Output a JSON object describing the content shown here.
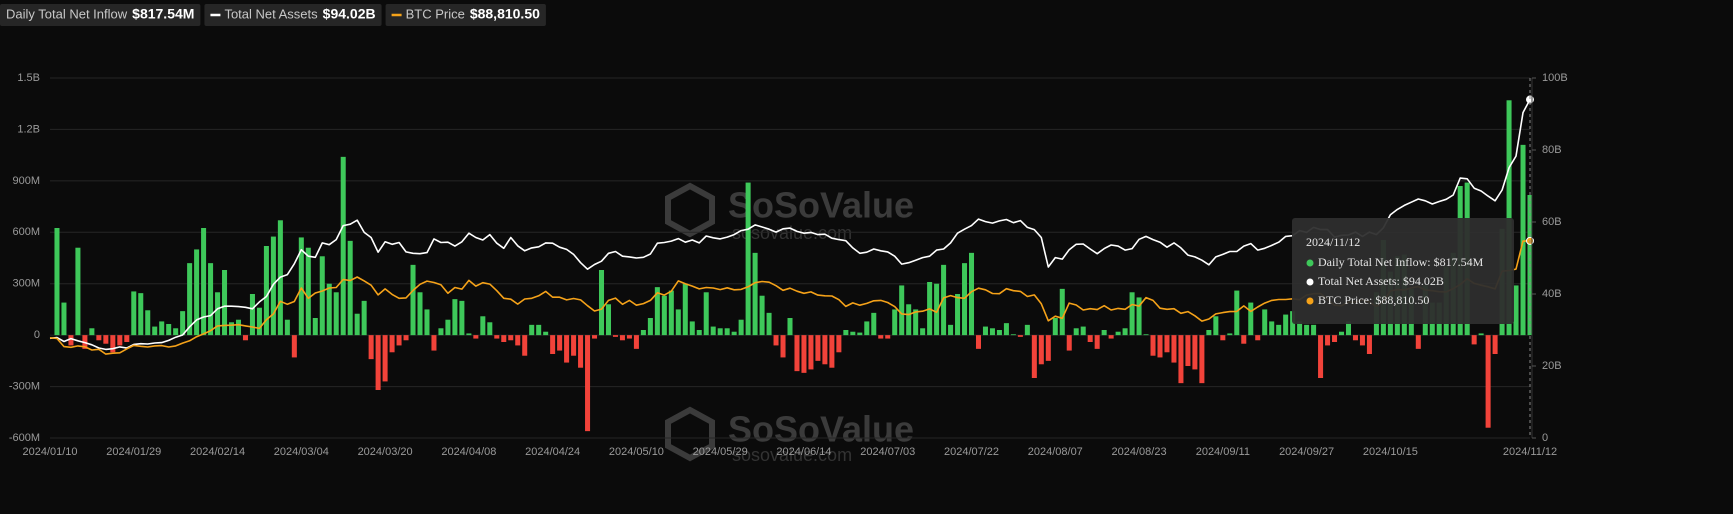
{
  "chart_data": {
    "type": "bar",
    "categories": [
      "2024/01/10",
      null,
      null,
      null,
      null,
      null,
      null,
      null,
      null,
      null,
      null,
      null,
      "2024/01/29",
      null,
      null,
      null,
      null,
      null,
      null,
      null,
      null,
      null,
      null,
      null,
      "2024/02/14",
      null,
      null,
      null,
      null,
      null,
      null,
      null,
      null,
      null,
      null,
      null,
      "2024/03/04",
      null,
      null,
      null,
      null,
      null,
      null,
      null,
      null,
      null,
      null,
      null,
      "2024/03/20",
      null,
      null,
      null,
      null,
      null,
      null,
      null,
      null,
      null,
      null,
      null,
      "2024/04/08",
      null,
      null,
      null,
      null,
      null,
      null,
      null,
      null,
      null,
      null,
      null,
      "2024/04/24",
      null,
      null,
      null,
      null,
      null,
      null,
      null,
      null,
      null,
      null,
      null,
      "2024/05/10",
      null,
      null,
      null,
      null,
      null,
      null,
      null,
      null,
      null,
      null,
      null,
      "2024/05/29",
      null,
      null,
      null,
      null,
      null,
      null,
      null,
      null,
      null,
      null,
      null,
      "2024/06/14",
      null,
      null,
      null,
      null,
      null,
      null,
      null,
      null,
      null,
      null,
      null,
      "2024/07/03",
      null,
      null,
      null,
      null,
      null,
      null,
      null,
      null,
      null,
      null,
      null,
      "2024/07/22",
      null,
      null,
      null,
      null,
      null,
      null,
      null,
      null,
      null,
      null,
      null,
      "2024/08/07",
      null,
      null,
      null,
      null,
      null,
      null,
      null,
      null,
      null,
      null,
      null,
      "2024/08/23",
      null,
      null,
      null,
      null,
      null,
      null,
      null,
      null,
      null,
      null,
      null,
      "2024/09/11",
      null,
      null,
      null,
      null,
      null,
      null,
      null,
      null,
      null,
      null,
      null,
      "2024/09/27",
      null,
      null,
      null,
      null,
      null,
      null,
      null,
      null,
      null,
      null,
      null,
      "2024/10/15",
      null,
      null,
      null,
      null,
      null,
      null,
      null,
      null,
      null,
      null,
      null,
      null,
      null,
      null,
      null,
      null,
      null,
      null,
      null,
      "2024/11/12"
    ],
    "series": [
      {
        "name": "Daily Total Net Inflow",
        "type": "bar",
        "color": "#3ec85a",
        "negative_color": "#f2433a",
        "latest_label": "$817.54M",
        "values": [
          null,
          625,
          190,
          -60,
          510,
          -80,
          40,
          -30,
          -50,
          -100,
          -60,
          -40,
          255,
          245,
          145,
          50,
          80,
          65,
          40,
          140,
          420,
          500,
          625,
          420,
          250,
          380,
          75,
          90,
          -30,
          240,
          160,
          520,
          575,
          670,
          90,
          -130,
          570,
          510,
          100,
          460,
          300,
          250,
          1040,
          550,
          125,
          200,
          -140,
          -320,
          -270,
          -100,
          -60,
          -30,
          410,
          250,
          150,
          -90,
          40,
          90,
          210,
          200,
          10,
          -20,
          110,
          75,
          -20,
          -40,
          -30,
          -60,
          -120,
          60,
          60,
          20,
          -110,
          -90,
          -160,
          -120,
          -190,
          -560,
          -20,
          380,
          180,
          -10,
          -30,
          -20,
          -80,
          30,
          100,
          280,
          230,
          260,
          150,
          300,
          80,
          30,
          250,
          50,
          40,
          40,
          20,
          90,
          890,
          480,
          230,
          130,
          -60,
          -130,
          100,
          -210,
          -220,
          -200,
          -150,
          -170,
          -190,
          -100,
          30,
          20,
          15,
          80,
          130,
          -20,
          -20,
          150,
          290,
          180,
          150,
          40,
          310,
          300,
          410,
          60,
          240,
          420,
          480,
          -80,
          50,
          40,
          30,
          70,
          5,
          -10,
          60,
          -250,
          -170,
          -150,
          100,
          270,
          -90,
          40,
          50,
          -40,
          -80,
          30,
          -20,
          20,
          40,
          250,
          220,
          5,
          -120,
          -130,
          -100,
          -160,
          -280,
          -180,
          -200,
          -280,
          30,
          110,
          -30,
          10,
          260,
          -50,
          190,
          -30,
          150,
          80,
          60,
          120,
          140,
          80,
          60,
          60,
          -250,
          -60,
          -40,
          20,
          80,
          -30,
          -60,
          -110,
          250,
          555,
          370,
          460,
          470,
          270,
          -80,
          290,
          190,
          190,
          400,
          480,
          870,
          890,
          -54,
          10,
          -540,
          -110,
          620,
          1370,
          290,
          1110,
          817.54
        ]
      },
      {
        "name": "Total Net Assets",
        "type": "line",
        "axis": "y2",
        "color": "#ffffff",
        "latest_label": "$94.02B",
        "values": [
          27.7,
          27.9,
          26.8,
          27.6,
          27.0,
          26.5,
          25.9,
          25.0,
          24.6,
          24.8,
          25.3,
          25.0,
          26.0,
          26.2,
          26.1,
          26.4,
          26.5,
          27.1,
          28.0,
          28.6,
          30.9,
          32.8,
          33.6,
          34.0,
          35.9,
          36.6,
          36.6,
          36.5,
          36.3,
          35.9,
          37.8,
          39.3,
          42.7,
          44.7,
          45.4,
          48.4,
          52.3,
          50.5,
          50.2,
          54.2,
          53.7,
          55.1,
          59.0,
          59.4,
          60.5,
          57.1,
          55.7,
          51.6,
          54.5,
          53.8,
          54.3,
          51.7,
          51.3,
          51.2,
          51.5,
          55.3,
          54.3,
          54.4,
          53.3,
          54.5,
          56.9,
          55.7,
          55.0,
          56.5,
          54.1,
          52.7,
          55.7,
          53.4,
          52.0,
          52.8,
          53.1,
          54.2,
          54.1,
          53.0,
          52.4,
          51.0,
          48.7,
          46.9,
          48.2,
          49.1,
          51.3,
          51.8,
          50.5,
          50.3,
          50.0,
          50.2,
          51.1,
          54.1,
          54.3,
          54.7,
          55.4,
          54.4,
          55.0,
          54.2,
          56.1,
          55.6,
          55.3,
          55.8,
          56.5,
          57.6,
          58.0,
          59.2,
          58.6,
          58.0,
          57.2,
          58.1,
          58.3,
          57.4,
          56.9,
          57.1,
          56.5,
          56.6,
          55.5,
          55.1,
          54.8,
          52.8,
          51.3,
          51.6,
          52.5,
          52.0,
          51.7,
          50.5,
          48.3,
          48.7,
          49.4,
          50.1,
          50.5,
          52.2,
          52.5,
          54.2,
          56.9,
          58.0,
          59.0,
          60.8,
          60.1,
          59.7,
          60.3,
          60.7,
          59.8,
          60.4,
          58.5,
          57.9,
          55.7,
          47.5,
          50.1,
          49.7,
          52.3,
          53.8,
          53.9,
          52.5,
          51.2,
          52.6,
          53.6,
          53.3,
          52.2,
          52.6,
          55.2,
          56.0,
          55.1,
          54.4,
          53.0,
          54.2,
          52.8,
          50.8,
          50.3,
          49.4,
          48.1,
          50.3,
          51.0,
          51.8,
          51.8,
          53.3,
          54.0,
          52.2,
          52.7,
          53.5,
          54.4,
          56.0,
          56.2,
          57.6,
          57.1,
          58.5,
          57.9,
          57.9,
          55.8,
          56.3,
          56.4,
          57.2,
          56.0,
          57.2,
          56.5,
          58.4,
          62.0,
          63.5,
          64.6,
          65.5,
          66.4,
          65.9,
          65.0,
          65.7,
          66.3,
          67.5,
          72.2,
          72.0,
          69.4,
          68.6,
          67.2,
          65.9,
          68.9,
          75.1,
          78.3,
          90.4,
          94.02
        ]
      },
      {
        "name": "BTC Price",
        "type": "line",
        "axis": "y3",
        "color": "#f5a219",
        "latest_label": "$88,810.50",
        "values": [
          46600,
          46300,
          42800,
          42500,
          43100,
          42700,
          41300,
          41600,
          39500,
          39900,
          40100,
          41800,
          43300,
          42900,
          42600,
          43100,
          43200,
          42600,
          43100,
          44300,
          45300,
          47100,
          48300,
          49700,
          51800,
          52000,
          52100,
          52300,
          51800,
          51300,
          50700,
          54500,
          57000,
          62500,
          61200,
          62400,
          68300,
          63800,
          66100,
          67000,
          68300,
          68500,
          72000,
          71500,
          73100,
          71400,
          69500,
          65300,
          67900,
          65500,
          63800,
          64000,
          67200,
          69900,
          71300,
          70700,
          69700,
          66000,
          68500,
          67800,
          71600,
          69100,
          70600,
          70000,
          67100,
          63800,
          63400,
          61300,
          63500,
          63800,
          64900,
          66800,
          64300,
          64300,
          63100,
          63700,
          63100,
          60600,
          58300,
          59100,
          62900,
          63900,
          61200,
          62900,
          60800,
          61500,
          62900,
          66200,
          65200,
          66900,
          71400,
          70100,
          69100,
          67900,
          68500,
          68300,
          67600,
          68400,
          67500,
          67700,
          68800,
          70600,
          71100,
          70800,
          69300,
          67300,
          68200,
          66900,
          66000,
          66600,
          65200,
          64900,
          64800,
          63200,
          60300,
          61800,
          60800,
          61600,
          62700,
          62900,
          62000,
          60200,
          57000,
          56700,
          57900,
          58200,
          59200,
          57700,
          64000,
          65000,
          64100,
          63800,
          66700,
          68200,
          67500,
          65900,
          65800,
          68000,
          67100,
          66800,
          64600,
          65300,
          61400,
          54000,
          56000,
          55100,
          61700,
          60900,
          58700,
          59300,
          58900,
          60600,
          58700,
          59400,
          59000,
          61100,
          60400,
          64100,
          62900,
          59500,
          59000,
          59300,
          57300,
          58000,
          56200,
          53900,
          54800,
          57000,
          57600,
          58000,
          58100,
          60500,
          58100,
          60000,
          61700,
          62900,
          63300,
          63300,
          63600,
          63200,
          65200,
          65800,
          65900,
          63300,
          60800,
          60600,
          62100,
          62200,
          63200,
          62100,
          60300,
          62400,
          67000,
          67600,
          67400,
          68400,
          68900,
          67400,
          67100,
          66700,
          66600,
          68000,
          69800,
          72300,
          70300,
          69500,
          68800,
          67900,
          75600,
          75900,
          76500,
          88700,
          88810.5
        ]
      }
    ],
    "ylim": [
      -600,
      1500
    ],
    "yticks": [
      {
        "value": -600,
        "label": "-600M"
      },
      {
        "value": -300,
        "label": "-300M"
      },
      0,
      {
        "value": 300,
        "label": "300M"
      },
      {
        "value": 600,
        "label": "600M"
      },
      {
        "value": 900,
        "label": "900M"
      },
      {
        "value": 1200,
        "label": "1.2B"
      },
      {
        "value": 1500,
        "label": "1.5B"
      }
    ],
    "y2lim": [
      0,
      100
    ],
    "y2ticks": [
      0,
      {
        "value": 20,
        "label": "20B"
      },
      {
        "value": 40,
        "label": "40B"
      },
      {
        "value": 60,
        "label": "60B"
      },
      {
        "value": 80,
        "label": "80B"
      },
      {
        "value": 100,
        "label": "100B"
      }
    ],
    "y3lim": [
      3000,
      159700
    ],
    "grid": true,
    "tooltip": {
      "index": 212,
      "lines": [
        "Daily Total Net Inflow: $817.54M",
        "Total Net Assets: $94.02B",
        "BTC Price: $88,810.50"
      ]
    },
    "watermark": {
      "name": "SoSoValue",
      "url": "sosovalue.com"
    }
  }
}
